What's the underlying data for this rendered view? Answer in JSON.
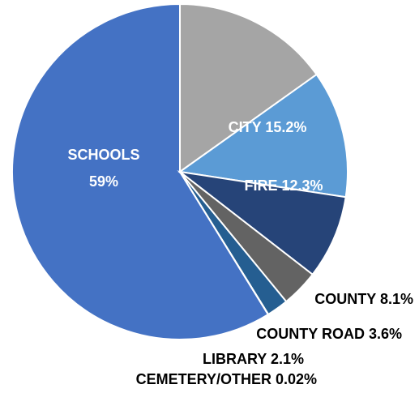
{
  "chart_data": {
    "type": "pie",
    "title": "",
    "slices": [
      {
        "label": "SCHOOLS",
        "value": 59,
        "display": "59%",
        "color": "#4472C4",
        "text_color": "#ffffff"
      },
      {
        "label": "CITY",
        "value": 15.2,
        "display": "15.2%",
        "color": "#A5A5A5",
        "text_color": "#ffffff"
      },
      {
        "label": "FIRE",
        "value": 12.3,
        "display": "12.3%",
        "color": "#5B9BD5",
        "text_color": "#ffffff"
      },
      {
        "label": "COUNTY",
        "value": 8.1,
        "display": "8.1%",
        "color": "#264478",
        "text_color": "#000000"
      },
      {
        "label": "COUNTY ROAD",
        "value": 3.6,
        "display": "3.6%",
        "color": "#636363",
        "text_color": "#000000"
      },
      {
        "label": "LIBRARY",
        "value": 2.1,
        "display": "2.1%",
        "color": "#255E91",
        "text_color": "#000000"
      },
      {
        "label": "CEMETERY/OTHER",
        "value": 0.02,
        "display": "0.02%",
        "color": "#9E480E",
        "text_color": "#000000"
      }
    ]
  }
}
